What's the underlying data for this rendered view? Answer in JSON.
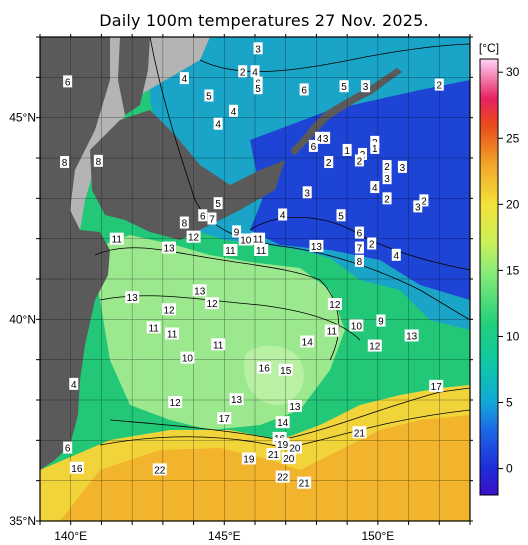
{
  "title": "Daily 100m temperatures 27 Nov. 2025.",
  "unit_label": "[°C]",
  "colorbar": {
    "ticks": [
      "0",
      "5",
      "10",
      "15",
      "20",
      "25",
      "30"
    ],
    "tick_values": [
      0,
      5,
      10,
      15,
      20,
      25,
      30
    ],
    "range": [
      -2,
      31
    ],
    "stops": [
      {
        "v": -2,
        "c": "#3a10c8"
      },
      {
        "v": 0,
        "c": "#1e2cd8"
      },
      {
        "v": 3,
        "c": "#1c6ae6"
      },
      {
        "v": 5,
        "c": "#12a8d8"
      },
      {
        "v": 8,
        "c": "#10c8a4"
      },
      {
        "v": 11,
        "c": "#22d07a"
      },
      {
        "v": 15,
        "c": "#8cec78"
      },
      {
        "v": 17,
        "c": "#c8f05a"
      },
      {
        "v": 20,
        "c": "#f4e23a"
      },
      {
        "v": 23,
        "c": "#f2a62a"
      },
      {
        "v": 26,
        "c": "#ea4a1a"
      },
      {
        "v": 28,
        "c": "#e82060"
      },
      {
        "v": 31,
        "c": "#ffd4f8"
      }
    ]
  },
  "axes": {
    "x_ticks": [
      "140°E",
      "145°E",
      "150°E"
    ],
    "y_ticks": [
      "45°N",
      "40°N",
      "35°N"
    ],
    "lon_range": [
      139,
      153
    ],
    "lat_range": [
      35,
      47
    ]
  },
  "colors": {
    "land": "#5a5a5a",
    "coast_shelf": "#b4b4b4",
    "cold": "#1e44d6",
    "subarctic": "#1aa4c8",
    "transition": "#22c878",
    "warm_eddy": "#9ce88e",
    "kuroshio": "#f0d43a",
    "subtropical": "#f2b42c",
    "frame": "#000000"
  },
  "chart_data": {
    "type": "heatmap",
    "title": "Daily 100m temperatures 27 Nov. 2025.",
    "labels": [
      {
        "t": "3",
        "lon": 146.1,
        "lat": 46.72
      },
      {
        "t": "6",
        "lon": 139.9,
        "lat": 45.9
      },
      {
        "t": "4",
        "lon": 146.0,
        "lat": 46.15
      },
      {
        "t": "2",
        "lon": 145.6,
        "lat": 46.15
      },
      {
        "t": "4",
        "lon": 143.7,
        "lat": 45.98
      },
      {
        "t": "6",
        "lon": 146.1,
        "lat": 45.87
      },
      {
        "t": "5",
        "lon": 146.1,
        "lat": 45.73
      },
      {
        "t": "5",
        "lon": 144.5,
        "lat": 45.55
      },
      {
        "t": "6",
        "lon": 147.6,
        "lat": 45.7
      },
      {
        "t": "5",
        "lon": 148.9,
        "lat": 45.78
      },
      {
        "t": "3",
        "lon": 149.6,
        "lat": 45.78
      },
      {
        "t": "2",
        "lon": 152.0,
        "lat": 45.82
      },
      {
        "t": "4",
        "lon": 145.3,
        "lat": 45.17
      },
      {
        "t": "4",
        "lon": 144.8,
        "lat": 44.85
      },
      {
        "t": "4",
        "lon": 148.1,
        "lat": 44.5
      },
      {
        "t": "3",
        "lon": 148.3,
        "lat": 44.5
      },
      {
        "t": "6",
        "lon": 147.9,
        "lat": 44.3
      },
      {
        "t": "2",
        "lon": 149.5,
        "lat": 44.1
      },
      {
        "t": "1",
        "lon": 149.0,
        "lat": 44.2
      },
      {
        "t": "3",
        "lon": 149.9,
        "lat": 44.4
      },
      {
        "t": "1",
        "lon": 149.9,
        "lat": 44.25
      },
      {
        "t": "2",
        "lon": 148.4,
        "lat": 43.9
      },
      {
        "t": "2",
        "lon": 149.4,
        "lat": 43.94
      },
      {
        "t": "2",
        "lon": 150.3,
        "lat": 43.8
      },
      {
        "t": "3",
        "lon": 150.8,
        "lat": 43.78
      },
      {
        "t": "3",
        "lon": 150.3,
        "lat": 43.5
      },
      {
        "t": "8",
        "lon": 139.8,
        "lat": 43.9
      },
      {
        "t": "8",
        "lon": 140.9,
        "lat": 43.93
      },
      {
        "t": "4",
        "lon": 149.9,
        "lat": 43.28
      },
      {
        "t": "3",
        "lon": 147.7,
        "lat": 43.15
      },
      {
        "t": "2",
        "lon": 150.3,
        "lat": 43.0
      },
      {
        "t": "5",
        "lon": 144.8,
        "lat": 42.88
      },
      {
        "t": "6",
        "lon": 144.3,
        "lat": 42.58
      },
      {
        "t": "7",
        "lon": 144.6,
        "lat": 42.5
      },
      {
        "t": "4",
        "lon": 146.9,
        "lat": 42.6
      },
      {
        "t": "5",
        "lon": 148.8,
        "lat": 42.58
      },
      {
        "t": "2",
        "lon": 151.5,
        "lat": 42.95
      },
      {
        "t": "3",
        "lon": 151.3,
        "lat": 42.8
      },
      {
        "t": "8",
        "lon": 143.7,
        "lat": 42.4
      },
      {
        "t": "12",
        "lon": 144.0,
        "lat": 42.05
      },
      {
        "t": "11",
        "lon": 141.5,
        "lat": 42.0
      },
      {
        "t": "9",
        "lon": 145.4,
        "lat": 42.18
      },
      {
        "t": "10",
        "lon": 145.7,
        "lat": 41.98
      },
      {
        "t": "11",
        "lon": 146.1,
        "lat": 42.0
      },
      {
        "t": "13",
        "lon": 143.2,
        "lat": 41.78
      },
      {
        "t": "11",
        "lon": 145.2,
        "lat": 41.72
      },
      {
        "t": "11",
        "lon": 146.2,
        "lat": 41.72
      },
      {
        "t": "13",
        "lon": 148.0,
        "lat": 41.82
      },
      {
        "t": "6",
        "lon": 149.4,
        "lat": 42.15
      },
      {
        "t": "7",
        "lon": 149.4,
        "lat": 41.78
      },
      {
        "t": "2",
        "lon": 149.8,
        "lat": 41.88
      },
      {
        "t": "8",
        "lon": 149.4,
        "lat": 41.45
      },
      {
        "t": "4",
        "lon": 150.6,
        "lat": 41.6
      },
      {
        "t": "13",
        "lon": 142.0,
        "lat": 40.55
      },
      {
        "t": "13",
        "lon": 144.2,
        "lat": 40.72
      },
      {
        "t": "12",
        "lon": 143.2,
        "lat": 40.25
      },
      {
        "t": "12",
        "lon": 144.6,
        "lat": 40.4
      },
      {
        "t": "12",
        "lon": 148.6,
        "lat": 40.38
      },
      {
        "t": "11",
        "lon": 142.7,
        "lat": 39.8
      },
      {
        "t": "11",
        "lon": 143.3,
        "lat": 39.65
      },
      {
        "t": "11",
        "lon": 148.5,
        "lat": 39.72
      },
      {
        "t": "10",
        "lon": 149.3,
        "lat": 39.85
      },
      {
        "t": "9",
        "lon": 150.1,
        "lat": 39.97
      },
      {
        "t": "13",
        "lon": 151.1,
        "lat": 39.6
      },
      {
        "t": "11",
        "lon": 144.8,
        "lat": 39.38
      },
      {
        "t": "14",
        "lon": 147.7,
        "lat": 39.45
      },
      {
        "t": "12",
        "lon": 149.9,
        "lat": 39.35
      },
      {
        "t": "10",
        "lon": 143.8,
        "lat": 39.05
      },
      {
        "t": "16",
        "lon": 146.3,
        "lat": 38.8
      },
      {
        "t": "15",
        "lon": 147.0,
        "lat": 38.75
      },
      {
        "t": "4",
        "lon": 140.1,
        "lat": 38.4
      },
      {
        "t": "17",
        "lon": 151.9,
        "lat": 38.35
      },
      {
        "t": "12",
        "lon": 143.4,
        "lat": 37.95
      },
      {
        "t": "13",
        "lon": 145.4,
        "lat": 38.02
      },
      {
        "t": "13",
        "lon": 147.3,
        "lat": 37.85
      },
      {
        "t": "17",
        "lon": 145.0,
        "lat": 37.55
      },
      {
        "t": "14",
        "lon": 146.9,
        "lat": 37.45
      },
      {
        "t": "21",
        "lon": 149.4,
        "lat": 37.2
      },
      {
        "t": "16",
        "lon": 146.8,
        "lat": 37.06
      },
      {
        "t": "19",
        "lon": 146.9,
        "lat": 36.91
      },
      {
        "t": "6",
        "lon": 139.9,
        "lat": 36.82
      },
      {
        "t": "20",
        "lon": 147.3,
        "lat": 36.82
      },
      {
        "t": "21",
        "lon": 146.6,
        "lat": 36.66
      },
      {
        "t": "20",
        "lon": 147.1,
        "lat": 36.56
      },
      {
        "t": "19",
        "lon": 145.8,
        "lat": 36.55
      },
      {
        "t": "16",
        "lon": 140.2,
        "lat": 36.32
      },
      {
        "t": "22",
        "lon": 142.9,
        "lat": 36.28
      },
      {
        "t": "22",
        "lon": 146.9,
        "lat": 36.1
      },
      {
        "t": "21",
        "lon": 147.6,
        "lat": 35.95
      }
    ]
  }
}
